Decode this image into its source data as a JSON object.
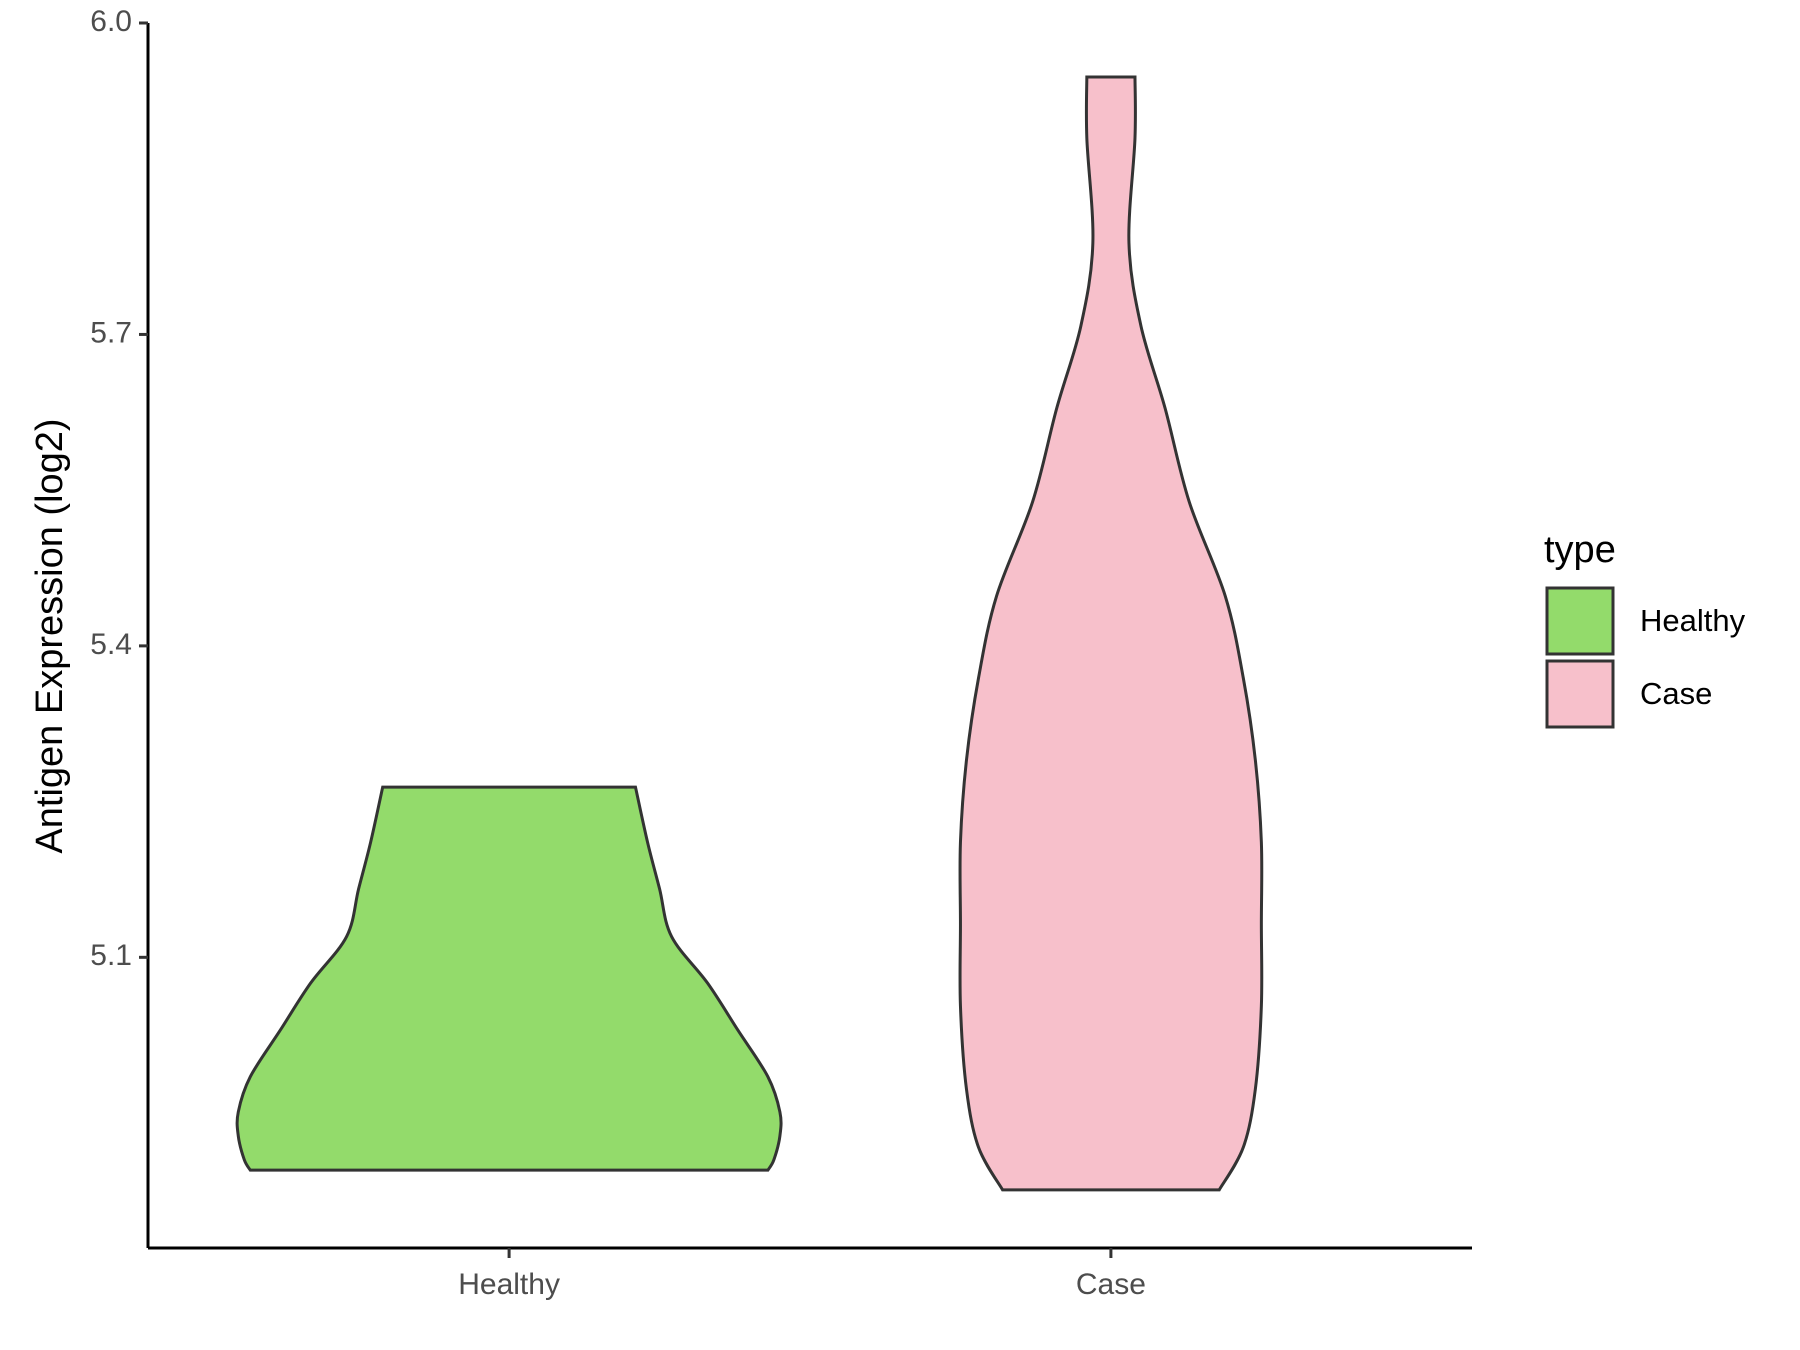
{
  "chart_data": {
    "type": "violin",
    "y_label": "Antigen Expression (log2)",
    "categories": [
      "Healthy",
      "Case"
    ],
    "legend_title": "type",
    "ylim": [
      4.82,
      6.0
    ],
    "yticks": [
      5.1,
      5.4,
      5.7,
      {
        "value": 6,
        "label": "6.0"
      }
    ],
    "series": [
      {
        "name": "Healthy",
        "color": "#93db6b",
        "y": [
          5.264,
          5.211,
          5.166,
          5.12,
          5.075,
          5.03,
          4.985,
          4.951,
          4.928,
          4.905,
          4.895
        ],
        "width": [
          0.21,
          0.23,
          0.25,
          0.27,
          0.33,
          0.38,
          0.43,
          0.45,
          0.45,
          0.44,
          0.43
        ]
      },
      {
        "name": "Case",
        "color": "#f7c0cb",
        "y": [
          5.948,
          5.889,
          5.788,
          5.708,
          5.629,
          5.539,
          5.448,
          5.369,
          5.29,
          5.211,
          5.132,
          5.053,
          4.973,
          4.917,
          4.876
        ],
        "width": [
          0.04,
          0.04,
          0.03,
          0.05,
          0.09,
          0.13,
          0.19,
          0.22,
          0.24,
          0.25,
          0.25,
          0.25,
          0.24,
          0.22,
          0.18
        ]
      }
    ]
  }
}
